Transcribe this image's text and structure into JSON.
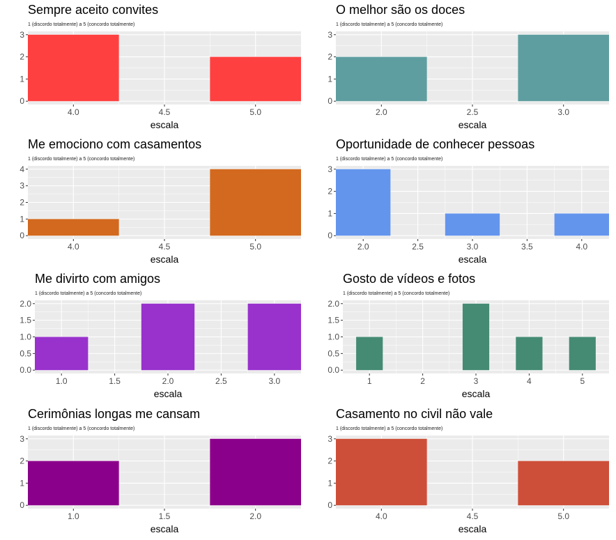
{
  "chart_data": [
    {
      "type": "bar",
      "title": "Sempre aceito convites",
      "subtitle": "1 (discordo totalmente) a 5 (concordo totalmente)",
      "xlabel": "escala",
      "ylabel": "",
      "x": [
        4,
        5
      ],
      "values": [
        3,
        2
      ],
      "xlim": [
        3.75,
        5.25
      ],
      "xticks": [
        4.0,
        4.5,
        5.0
      ],
      "xtick_labels": [
        "4.0",
        "4.5",
        "5.0"
      ],
      "ylim": [
        0,
        3
      ],
      "yticks": [
        0,
        1,
        2,
        3
      ],
      "ytick_labels": [
        "0",
        "1",
        "2",
        "3"
      ],
      "bar_width": 0.5,
      "color": "#ff4040",
      "grid": true
    },
    {
      "type": "bar",
      "title": "O melhor são os doces",
      "subtitle": "1 (discordo totalmente) a 5 (concordo totalmente)",
      "xlabel": "escala",
      "ylabel": "",
      "x": [
        2,
        3
      ],
      "values": [
        2,
        3
      ],
      "xlim": [
        1.75,
        3.25
      ],
      "xticks": [
        2.0,
        2.5,
        3.0
      ],
      "xtick_labels": [
        "2.0",
        "2.5",
        "3.0"
      ],
      "ylim": [
        0,
        3
      ],
      "yticks": [
        0,
        1,
        2,
        3
      ],
      "ytick_labels": [
        "0",
        "1",
        "2",
        "3"
      ],
      "bar_width": 0.5,
      "color": "#5f9ea0",
      "grid": true
    },
    {
      "type": "bar",
      "title": "Me emociono com casamentos",
      "subtitle": "1 (discordo totalmente) a 5 (concordo totalmente)",
      "xlabel": "escala",
      "ylabel": "",
      "x": [
        4,
        5
      ],
      "values": [
        1,
        4
      ],
      "xlim": [
        3.75,
        5.25
      ],
      "xticks": [
        4.0,
        4.5,
        5.0
      ],
      "xtick_labels": [
        "4.0",
        "4.5",
        "5.0"
      ],
      "ylim": [
        0,
        4
      ],
      "yticks": [
        0,
        1,
        2,
        3,
        4
      ],
      "ytick_labels": [
        "0",
        "1",
        "2",
        "3",
        "4"
      ],
      "bar_width": 0.5,
      "color": "#d2691e",
      "grid": true
    },
    {
      "type": "bar",
      "title": "Oportunidade de conhecer pessoas",
      "subtitle": "1 (discordo totalmente) a 5 (concordo totalmente)",
      "xlabel": "escala",
      "ylabel": "",
      "x": [
        2,
        3,
        4
      ],
      "values": [
        3,
        1,
        1
      ],
      "xlim": [
        1.75,
        4.25
      ],
      "xticks": [
        2.0,
        2.5,
        3.0,
        3.5,
        4.0
      ],
      "xtick_labels": [
        "2.0",
        "2.5",
        "3.0",
        "3.5",
        "4.0"
      ],
      "ylim": [
        0,
        3
      ],
      "yticks": [
        0,
        1,
        2,
        3
      ],
      "ytick_labels": [
        "0",
        "1",
        "2",
        "3"
      ],
      "bar_width": 0.5,
      "color": "#6495ed",
      "grid": true
    },
    {
      "type": "bar",
      "title": "Me divirto com amigos",
      "subtitle": "1 (discordo totalmente) a 5 (concordo totalmente)",
      "xlabel": "escala",
      "ylabel": "",
      "x": [
        1,
        2,
        3
      ],
      "values": [
        1,
        2,
        2
      ],
      "xlim": [
        0.75,
        3.25
      ],
      "xticks": [
        1.0,
        1.5,
        2.0,
        2.5,
        3.0
      ],
      "xtick_labels": [
        "1.0",
        "1.5",
        "2.0",
        "2.5",
        "3.0"
      ],
      "ylim": [
        0,
        2
      ],
      "yticks": [
        0,
        0.5,
        1,
        1.5,
        2
      ],
      "ytick_labels": [
        "0.0",
        "0.5",
        "1.0",
        "1.5",
        "2.0"
      ],
      "bar_width": 0.5,
      "color": "#9932cc",
      "grid": true
    },
    {
      "type": "bar",
      "title": "Gosto de vídeos e fotos",
      "subtitle": "1 (discordo totalmente) a 5 (concordo totalmente)",
      "xlabel": "escala",
      "ylabel": "",
      "x": [
        1,
        2,
        3,
        4,
        5
      ],
      "values": [
        1,
        0,
        2,
        1,
        1
      ],
      "xlim": [
        0.5,
        5.5
      ],
      "xticks": [
        1,
        2,
        3,
        4,
        5
      ],
      "xtick_labels": [
        "1",
        "2",
        "3",
        "4",
        "5"
      ],
      "ylim": [
        0,
        2
      ],
      "yticks": [
        0,
        0.5,
        1,
        1.5,
        2
      ],
      "ytick_labels": [
        "0.0",
        "0.5",
        "1.0",
        "1.5",
        "2.0"
      ],
      "bar_width": 0.5,
      "color": "#458b74",
      "grid": true
    },
    {
      "type": "bar",
      "title": "Cerimônias longas me cansam",
      "subtitle": "1 (discordo totalmente) a 5 (concordo totalmente)",
      "xlabel": "escala",
      "ylabel": "",
      "x": [
        1,
        2
      ],
      "values": [
        2,
        3
      ],
      "xlim": [
        0.75,
        2.25
      ],
      "xticks": [
        1.0,
        1.5,
        2.0
      ],
      "xtick_labels": [
        "1.0",
        "1.5",
        "2.0"
      ],
      "ylim": [
        0,
        3
      ],
      "yticks": [
        0,
        1,
        2,
        3
      ],
      "ytick_labels": [
        "0",
        "1",
        "2",
        "3"
      ],
      "bar_width": 0.5,
      "color": "#8b008b",
      "grid": true
    },
    {
      "type": "bar",
      "title": "Casamento no civil não vale",
      "subtitle": "1 (discordo totalmente) a 5 (concordo totalmente)",
      "xlabel": "escala",
      "ylabel": "",
      "x": [
        4,
        5
      ],
      "values": [
        3,
        2
      ],
      "xlim": [
        3.75,
        5.25
      ],
      "xticks": [
        4.0,
        4.5,
        5.0
      ],
      "xtick_labels": [
        "4.0",
        "4.5",
        "5.0"
      ],
      "ylim": [
        0,
        3
      ],
      "yticks": [
        0,
        1,
        2,
        3
      ],
      "ytick_labels": [
        "0",
        "1",
        "2",
        "3"
      ],
      "bar_width": 0.5,
      "color": "#cd4f39",
      "grid": true
    }
  ]
}
